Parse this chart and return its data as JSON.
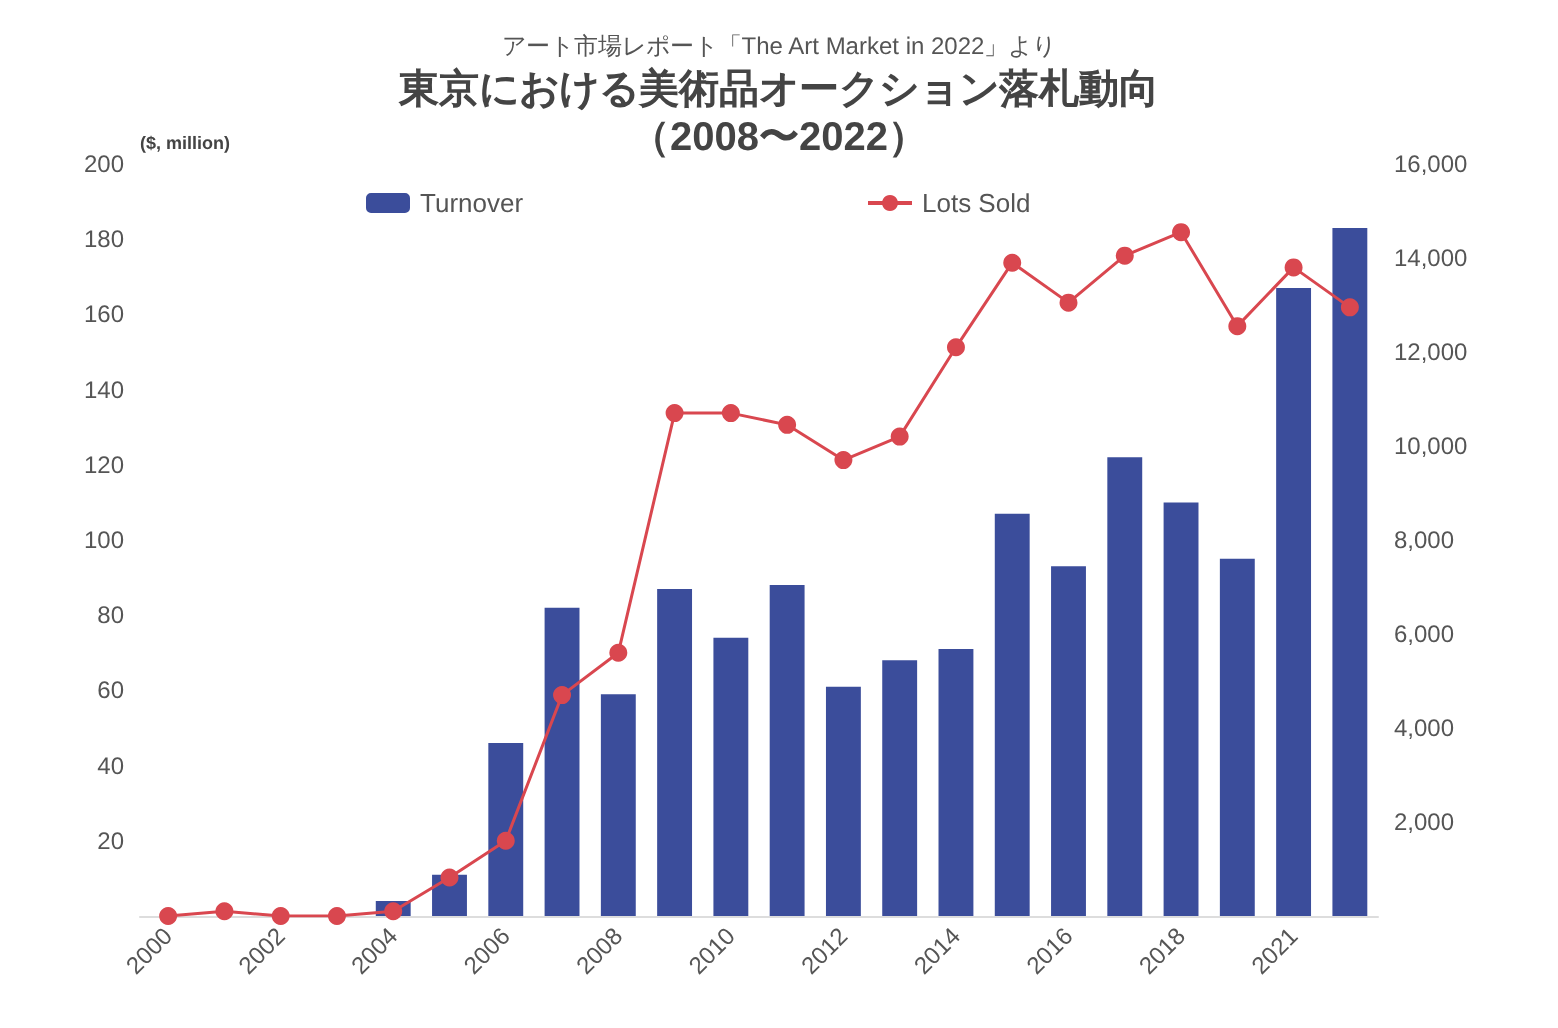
{
  "chart_data": {
    "type": "bar",
    "title": "東京における美術品オークション落札動向",
    "annotations": [
      "（2008〜2022）"
    ],
    "subtitle": "アート市場レポート「The Art Market in 2022」より",
    "ylabel": "($, million)",
    "categories": [
      "2000",
      null,
      "2002",
      null,
      "2004",
      null,
      "2006",
      null,
      "2008",
      null,
      "2010",
      null,
      "2012",
      null,
      "2014",
      null,
      "2016",
      null,
      "2018",
      null,
      "2021",
      null
    ],
    "series": [
      {
        "name": "Turnover",
        "color": "#3b4d9b",
        "values": [
          0,
          0,
          0,
          0,
          4,
          11,
          46,
          82,
          59,
          87,
          74,
          88,
          61,
          68,
          71,
          107,
          93,
          122,
          110,
          95,
          167,
          183
        ]
      },
      {
        "name": "Lots Sold",
        "type": "line",
        "axis": "y2",
        "color": "#d9474f",
        "values": [
          0,
          100,
          0,
          0,
          100,
          820,
          1600,
          4700,
          5600,
          10700,
          10700,
          10450,
          9700,
          10200,
          12100,
          13900,
          13050,
          14050,
          14550,
          12550,
          13800,
          12950
        ]
      }
    ],
    "ylim": [
      0,
      200
    ],
    "yticks": [
      20,
      40,
      60,
      80,
      100,
      120,
      140,
      160,
      180,
      200
    ],
    "y2lim": [
      0,
      16000
    ],
    "y2ticks": [
      {
        "value": 2000,
        "label": "2,000"
      },
      {
        "value": 4000,
        "label": "4,000"
      },
      {
        "value": 6000,
        "label": "6,000"
      },
      {
        "value": 8000,
        "label": "8,000"
      },
      {
        "value": 10000,
        "label": "10,000"
      },
      {
        "value": 12000,
        "label": "12,000"
      },
      {
        "value": 14000,
        "label": "14,000"
      },
      {
        "value": 16000,
        "label": "16,000"
      }
    ],
    "legend": "top",
    "marker": "circle",
    "line_style": "solid",
    "grid": false
  }
}
